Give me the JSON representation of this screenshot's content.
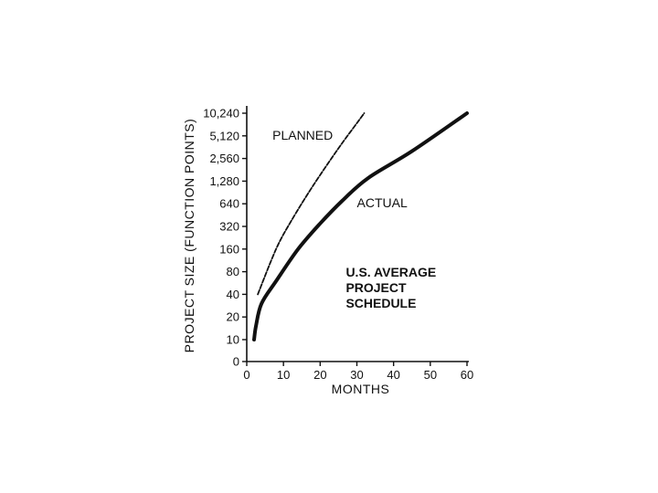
{
  "chart_data": {
    "type": "line",
    "xlabel": "MONTHS",
    "ylabel": "PROJECT SIZE (FUNCTION POINTS)",
    "x_ticks": [
      "0",
      "10",
      "20",
      "30",
      "40",
      "50",
      "60"
    ],
    "xlim": [
      0,
      60
    ],
    "y_ticks": [
      "0",
      "10",
      "20",
      "40",
      "80",
      "160",
      "320",
      "640",
      "1,280",
      "2,560",
      "5,120",
      "10,240"
    ],
    "y_scale": "categorical-log (each tick doubles, starting at 10; 0 at origin)",
    "grid": false,
    "series": [
      {
        "name": "PLANNED",
        "style": "dashed",
        "points": [
          [
            3,
            40
          ],
          [
            8,
            160
          ],
          [
            12,
            370
          ],
          [
            18,
            1100
          ],
          [
            25,
            3500
          ],
          [
            29.5,
            7000
          ],
          [
            32,
            10240
          ]
        ]
      },
      {
        "name": "ACTUAL",
        "style": "solid-thick",
        "points": [
          [
            2,
            10
          ],
          [
            2.5,
            15
          ],
          [
            4,
            30
          ],
          [
            8,
            60
          ],
          [
            14,
            160
          ],
          [
            20,
            350
          ],
          [
            26,
            700
          ],
          [
            33,
            1400
          ],
          [
            45,
            3200
          ],
          [
            60,
            10240
          ]
        ]
      }
    ],
    "annotations": [
      {
        "text": "U.S. AVERAGE",
        "bold": true
      },
      {
        "text": "PROJECT",
        "bold": true
      },
      {
        "text": "SCHEDULE",
        "bold": true
      }
    ],
    "colors": {
      "ink": "#111111",
      "background": "#ffffff"
    }
  }
}
